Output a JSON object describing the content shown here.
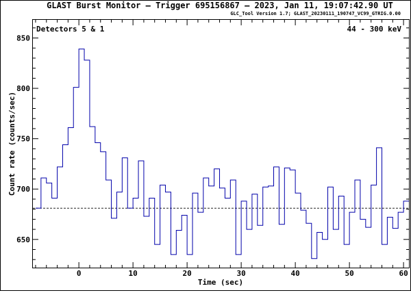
{
  "chart_data": {
    "type": "line",
    "step": true,
    "title": "GLAST Burst Monitor  –  Trigger 695156867  –  2023, Jan 11, 19:07:42.90 UT",
    "subtitle": "GLC_Tool Version 1.7; GLAST_20230111_190747_VC99_GTRIG.0.00",
    "xlabel": "Time (sec)",
    "ylabel": "Count rate (counts/sec)",
    "xlim": [
      -8.5,
      61
    ],
    "ylim": [
      622,
      868
    ],
    "xticks": [
      0,
      10,
      20,
      30,
      40,
      50,
      60
    ],
    "yticks": [
      650,
      700,
      750,
      800,
      850
    ],
    "annotation_left": "Detectors 5 & 1",
    "annotation_right": "44 - 300 keV",
    "background_level": 681,
    "bin_width": 1,
    "bin_start": -8,
    "colors": {
      "series": "#0000aa",
      "axes": "#000000",
      "background_line": "#000000"
    },
    "series": [
      {
        "values": [
          681,
          711,
          706,
          691,
          722,
          744,
          761,
          801,
          839,
          828,
          762,
          746,
          737,
          709,
          671,
          697,
          731,
          681,
          691,
          728,
          673,
          691,
          645,
          704,
          697,
          635,
          659,
          674,
          635,
          696,
          677,
          711,
          703,
          720,
          701,
          691,
          709,
          635,
          688,
          660,
          695,
          664,
          702,
          703,
          722,
          665,
          721,
          719,
          696,
          679,
          666,
          631,
          657,
          650,
          702,
          660,
          693,
          645,
          677,
          709,
          670,
          662,
          704,
          741,
          645,
          672,
          661,
          677,
          688
        ]
      }
    ]
  }
}
